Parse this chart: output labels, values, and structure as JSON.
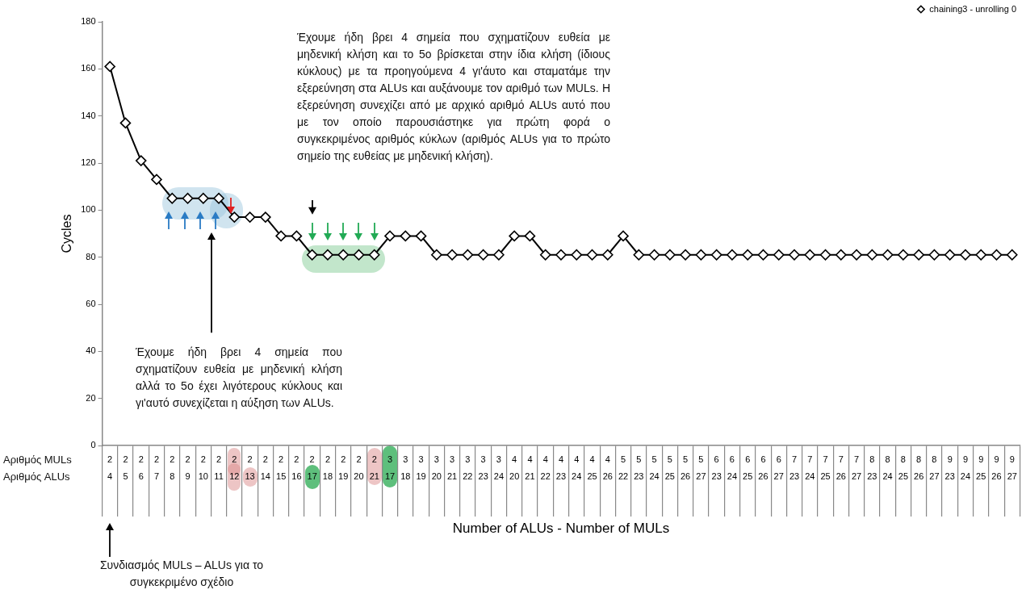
{
  "chart_data": {
    "type": "line",
    "xlabel": "Number of ALUs - Number of MULs",
    "ylabel": "Cycles",
    "categories": [
      "2\n4",
      "2\n5",
      "2\n6",
      "2\n7",
      "2\n8",
      "2\n9",
      "2\n10",
      "2\n11",
      "2\n12",
      "2\n13",
      "2\n14",
      "2\n15",
      "2\n16",
      "2\n17",
      "2\n18",
      "2\n19",
      "2\n20",
      "2\n21",
      "3\n17",
      "3\n18",
      "3\n19",
      "3\n20",
      "3\n21",
      "3\n22",
      "3\n23",
      "3\n24",
      "4\n20",
      "4\n21",
      "4\n22",
      "4\n23",
      "4\n24",
      "4\n25",
      "4\n26",
      "5\n22",
      "5\n23",
      "5\n24",
      "5\n25",
      "5\n26",
      "5\n27",
      "6\n23",
      "6\n24",
      "6\n25",
      "6\n26",
      "6\n27",
      "7\n23",
      "7\n24",
      "7\n25",
      "7\n26",
      "7\n27",
      "8\n23",
      "8\n24",
      "8\n25",
      "8\n26",
      "8\n27",
      "9\n23",
      "9\n24",
      "9\n25",
      "9\n26",
      "9\n27"
    ],
    "series": [
      {
        "name": "chaining3 - unrolling 0",
        "color": "#000000",
        "values": [
          161,
          137,
          121,
          113,
          105,
          105,
          105,
          105,
          97,
          97,
          97,
          89,
          89,
          81,
          81,
          81,
          81,
          81,
          89,
          89,
          89,
          81,
          81,
          81,
          81,
          81,
          89,
          89,
          81,
          81,
          81,
          81,
          81,
          89,
          81,
          81,
          81,
          81,
          81,
          81,
          81,
          81,
          81,
          81,
          81,
          81,
          81,
          81,
          81,
          81,
          81,
          81,
          81,
          81,
          81,
          81,
          81,
          81,
          81
        ]
      }
    ],
    "ylim": [
      0,
      180
    ],
    "yticks": [
      0,
      20,
      40,
      60,
      80,
      100,
      120,
      140,
      160,
      180
    ],
    "grid": false,
    "legend": "top right",
    "marker": "diamond",
    "line_style": "solid",
    "annotations": [
      "Έχουμε ήδη βρει 4 σημεία που σχηματίζουν ευθεία με μηδενική κλήση και το 5ο βρίσκεται στην ίδια κλήση (ίδιους κύκλους) με τα προηγούμενα 4 γι'άυτο και σταματάμε την εξερεύνηση στα ALUs και αυξάνουμε τον αριθμό των MULs. Η εξερεύνηση συνεχίζει από με αρχικό αριθμό ALUs αυτό που με τον οποίο παρουσιάστηκε για πρώτη φορά ο συγκεκριμένος αριθμός κύκλων (αριθμός ALUs για το πρώτο σημείο της ευθείας με μηδενική κλήση).",
      "Έχουμε ήδη βρει 4 σημεία που σχηματίζουν ευθεία με μηδενική κλήση αλλά το 5ο έχει λιγότερους κύκλους και γι'αυτό συνεχίζεται η αύξηση των ALUs.",
      "Συνδιασμός MULs – ALUs για το συγκεκριμένο σχέδιο",
      "Αριθμός MULs",
      "Αριθμός ALUs"
    ]
  }
}
